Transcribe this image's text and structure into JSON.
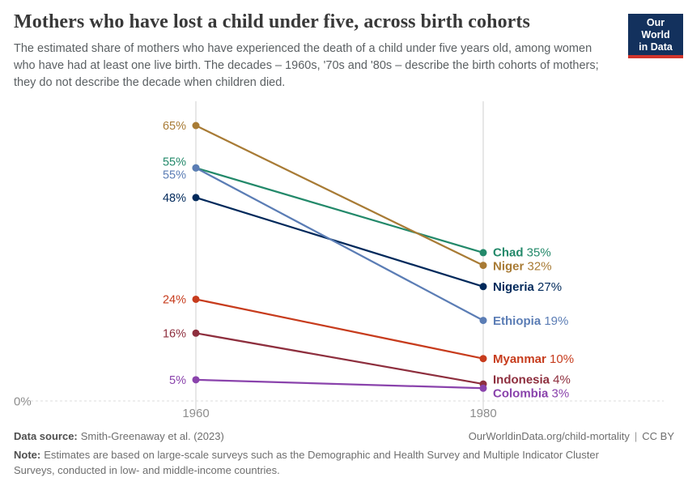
{
  "brand": {
    "navy": "#13315d",
    "red": "#d1342b"
  },
  "header": {
    "logo": {
      "line1": "Our World",
      "line2": "in Data"
    }
  },
  "chart_data": {
    "type": "line",
    "subtype": "slopechart",
    "title": "Mothers who have lost a child under five, across birth cohorts",
    "subtitle": "The estimated share of mothers who have experienced the death of a child under five years old, among women who have had at least one live birth. The decades – 1960s, '70s and '80s – describe the birth cohorts of mothers; they do not describe the decade when children died.",
    "x": [
      "1960",
      "1980"
    ],
    "xlabel": "",
    "ylabel": "",
    "ylim": [
      0,
      70
    ],
    "unit": "%",
    "grid": "vertical-only",
    "baseline_label": "0%",
    "legend_position": "right-inline-labels",
    "series": [
      {
        "name": "Chad",
        "values": [
          55,
          35
        ],
        "color": "#23896a"
      },
      {
        "name": "Niger",
        "values": [
          65,
          32
        ],
        "color": "#a87b35"
      },
      {
        "name": "Nigeria",
        "values": [
          48,
          27
        ],
        "color": "#00295b"
      },
      {
        "name": "Ethiopia",
        "values": [
          55,
          19
        ],
        "color": "#5b7db5"
      },
      {
        "name": "Myanmar",
        "values": [
          24,
          10
        ],
        "color": "#c73c1d"
      },
      {
        "name": "Indonesia",
        "values": [
          16,
          4
        ],
        "color": "#8e2f3e"
      },
      {
        "name": "Colombia",
        "values": [
          5,
          3
        ],
        "color": "#8a43ac"
      }
    ]
  },
  "footer": {
    "data_source_label": "Data source:",
    "data_source_value": "Smith-Greenaway et al. (2023)",
    "link": "OurWorldinData.org/child-mortality",
    "separator": "|",
    "license": "CC BY",
    "note_label": "Note:",
    "note_value": "Estimates are based on large-scale surveys such as the Demographic and Health Survey and Multiple Indicator Cluster Surveys, conducted in low- and middle-income countries."
  }
}
